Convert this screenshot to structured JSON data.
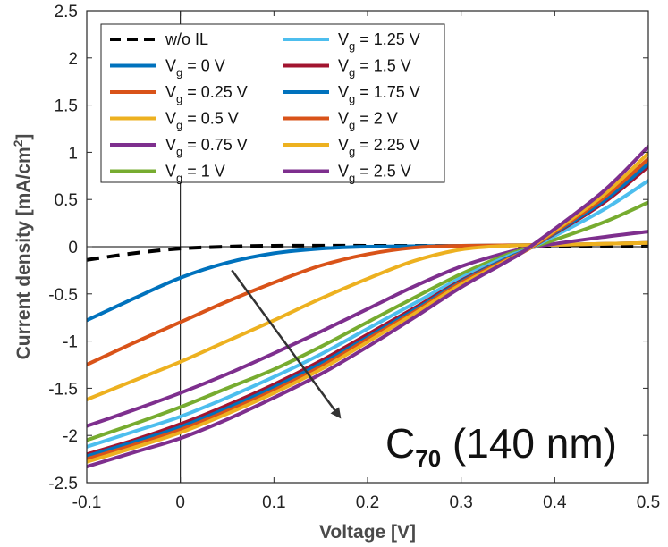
{
  "chart_data": {
    "type": "line",
    "xlabel": "Voltage [V]",
    "ylabel": "Current density [mA/cm",
    "ylabel_sup": "2",
    "ylabel_end": "]",
    "xlim": [
      -0.1,
      0.5
    ],
    "ylim": [
      -2.5,
      2.5
    ],
    "xticks": [
      "-0.1",
      "0",
      "0.1",
      "0.2",
      "0.3",
      "0.4",
      "0.5"
    ],
    "yticks": [
      "-2.5",
      "-2",
      "-1.5",
      "-1",
      "-0.5",
      "0",
      "0.5",
      "1",
      "1.5",
      "2",
      "2.5"
    ],
    "annotation": {
      "main": "C",
      "sub": "70",
      "rest": " (140 nm)"
    },
    "arrow": {
      "from": [
        0.055,
        -0.25
      ],
      "to": [
        0.17,
        -1.8
      ]
    },
    "series": [
      {
        "name": "w/o IL",
        "color": "#000000",
        "dash": true,
        "points": [
          [
            -0.1,
            -0.14
          ],
          [
            -0.05,
            -0.07
          ],
          [
            0,
            -0.02
          ],
          [
            0.05,
            0.0
          ],
          [
            0.1,
            0.01
          ],
          [
            0.2,
            0.01
          ],
          [
            0.3,
            0.01
          ],
          [
            0.4,
            0.01
          ],
          [
            0.5,
            0.01
          ]
        ]
      },
      {
        "name": "Vg = 0 V",
        "label": {
          "v": "V",
          "g": "g",
          "rest": " = 0 V"
        },
        "color": "#0072BD",
        "points": [
          [
            -0.1,
            -0.78
          ],
          [
            -0.05,
            -0.55
          ],
          [
            0,
            -0.33
          ],
          [
            0.05,
            -0.17
          ],
          [
            0.1,
            -0.07
          ],
          [
            0.15,
            -0.02
          ],
          [
            0.2,
            0.0
          ],
          [
            0.3,
            0.01
          ],
          [
            0.4,
            0.02
          ],
          [
            0.5,
            0.04
          ]
        ]
      },
      {
        "name": "Vg = 0.25 V",
        "label": {
          "v": "V",
          "g": "g",
          "rest": " = 0.25 V"
        },
        "color": "#D95319",
        "points": [
          [
            -0.1,
            -1.25
          ],
          [
            -0.05,
            -1.02
          ],
          [
            0,
            -0.8
          ],
          [
            0.05,
            -0.58
          ],
          [
            0.1,
            -0.38
          ],
          [
            0.15,
            -0.2
          ],
          [
            0.2,
            -0.08
          ],
          [
            0.25,
            -0.01
          ],
          [
            0.3,
            0.01
          ],
          [
            0.4,
            0.02
          ],
          [
            0.5,
            0.04
          ]
        ]
      },
      {
        "name": "Vg = 0.5 V",
        "label": {
          "v": "V",
          "g": "g",
          "rest": " = 0.5 V"
        },
        "color": "#EDB120",
        "points": [
          [
            -0.1,
            -1.62
          ],
          [
            -0.05,
            -1.42
          ],
          [
            0,
            -1.22
          ],
          [
            0.05,
            -1.0
          ],
          [
            0.1,
            -0.78
          ],
          [
            0.15,
            -0.55
          ],
          [
            0.2,
            -0.34
          ],
          [
            0.25,
            -0.15
          ],
          [
            0.3,
            -0.03
          ],
          [
            0.35,
            0.01
          ],
          [
            0.4,
            0.02
          ],
          [
            0.5,
            0.04
          ]
        ]
      },
      {
        "name": "Vg = 0.75 V",
        "label": {
          "v": "V",
          "g": "g",
          "rest": " = 0.75 V"
        },
        "color": "#7E2F8E",
        "points": [
          [
            -0.1,
            -1.9
          ],
          [
            -0.05,
            -1.73
          ],
          [
            0,
            -1.55
          ],
          [
            0.05,
            -1.35
          ],
          [
            0.1,
            -1.13
          ],
          [
            0.15,
            -0.9
          ],
          [
            0.2,
            -0.66
          ],
          [
            0.25,
            -0.42
          ],
          [
            0.3,
            -0.21
          ],
          [
            0.35,
            -0.06
          ],
          [
            0.38,
            0.0
          ],
          [
            0.45,
            0.1
          ],
          [
            0.5,
            0.16
          ]
        ]
      },
      {
        "name": "Vg = 1 V",
        "label": {
          "v": "V",
          "g": "g",
          "rest": " = 1 V"
        },
        "color": "#77AC30",
        "points": [
          [
            -0.1,
            -2.05
          ],
          [
            -0.05,
            -1.88
          ],
          [
            0,
            -1.7
          ],
          [
            0.05,
            -1.5
          ],
          [
            0.1,
            -1.3
          ],
          [
            0.15,
            -1.06
          ],
          [
            0.2,
            -0.8
          ],
          [
            0.25,
            -0.54
          ],
          [
            0.3,
            -0.29
          ],
          [
            0.35,
            -0.08
          ],
          [
            0.378,
            0.0
          ],
          [
            0.45,
            0.25
          ],
          [
            0.5,
            0.47
          ]
        ]
      },
      {
        "name": "Vg = 1.25 V",
        "label": {
          "v": "V",
          "g": "g",
          "rest": " = 1.25 V"
        },
        "color": "#4DBEEE",
        "points": [
          [
            -0.1,
            -2.12
          ],
          [
            -0.05,
            -1.96
          ],
          [
            0,
            -1.8
          ],
          [
            0.05,
            -1.6
          ],
          [
            0.1,
            -1.38
          ],
          [
            0.15,
            -1.14
          ],
          [
            0.2,
            -0.87
          ],
          [
            0.25,
            -0.6
          ],
          [
            0.3,
            -0.33
          ],
          [
            0.35,
            -0.1
          ],
          [
            0.377,
            0.0
          ],
          [
            0.45,
            0.38
          ],
          [
            0.5,
            0.7
          ]
        ]
      },
      {
        "name": "Vg = 1.5 V",
        "label": {
          "v": "V",
          "g": "g",
          "rest": " = 1.5 V"
        },
        "color": "#A2142F",
        "points": [
          [
            -0.1,
            -2.2
          ],
          [
            -0.05,
            -2.05
          ],
          [
            0,
            -1.88
          ],
          [
            0.05,
            -1.68
          ],
          [
            0.1,
            -1.46
          ],
          [
            0.15,
            -1.21
          ],
          [
            0.2,
            -0.93
          ],
          [
            0.25,
            -0.65
          ],
          [
            0.3,
            -0.36
          ],
          [
            0.35,
            -0.12
          ],
          [
            0.376,
            0.0
          ],
          [
            0.45,
            0.45
          ],
          [
            0.5,
            0.85
          ]
        ]
      },
      {
        "name": "Vg = 1.75 V",
        "label": {
          "v": "V",
          "g": "g",
          "rest": " = 1.75 V"
        },
        "color": "#0072BD",
        "points": [
          [
            -0.1,
            -2.22
          ],
          [
            -0.05,
            -2.07
          ],
          [
            0,
            -1.91
          ],
          [
            0.05,
            -1.71
          ],
          [
            0.1,
            -1.49
          ],
          [
            0.15,
            -1.24
          ],
          [
            0.2,
            -0.96
          ],
          [
            0.25,
            -0.67
          ],
          [
            0.3,
            -0.37
          ],
          [
            0.35,
            -0.12
          ],
          [
            0.376,
            0.0
          ],
          [
            0.45,
            0.47
          ],
          [
            0.5,
            0.88
          ]
        ]
      },
      {
        "name": "Vg = 2 V",
        "label": {
          "v": "V",
          "g": "g",
          "rest": " = 2 V"
        },
        "color": "#D95319",
        "points": [
          [
            -0.1,
            -2.25
          ],
          [
            -0.05,
            -2.1
          ],
          [
            0,
            -1.94
          ],
          [
            0.05,
            -1.74
          ],
          [
            0.1,
            -1.52
          ],
          [
            0.15,
            -1.27
          ],
          [
            0.2,
            -0.98
          ],
          [
            0.25,
            -0.69
          ],
          [
            0.3,
            -0.38
          ],
          [
            0.35,
            -0.13
          ],
          [
            0.376,
            0.0
          ],
          [
            0.45,
            0.5
          ],
          [
            0.5,
            0.93
          ]
        ]
      },
      {
        "name": "Vg = 2.25 V",
        "label": {
          "v": "V",
          "g": "g",
          "rest": " = 2.25 V"
        },
        "color": "#EDB120",
        "points": [
          [
            -0.1,
            -2.28
          ],
          [
            -0.05,
            -2.13
          ],
          [
            0,
            -1.97
          ],
          [
            0.05,
            -1.77
          ],
          [
            0.1,
            -1.55
          ],
          [
            0.15,
            -1.3
          ],
          [
            0.2,
            -1.01
          ],
          [
            0.25,
            -0.71
          ],
          [
            0.3,
            -0.4
          ],
          [
            0.35,
            -0.14
          ],
          [
            0.375,
            0.0
          ],
          [
            0.45,
            0.53
          ],
          [
            0.5,
            0.99
          ]
        ]
      },
      {
        "name": "Vg = 2.5 V",
        "label": {
          "v": "V",
          "g": "g",
          "rest": " = 2.5 V"
        },
        "color": "#7E2F8E",
        "points": [
          [
            -0.1,
            -2.33
          ],
          [
            -0.05,
            -2.18
          ],
          [
            0,
            -2.03
          ],
          [
            0.05,
            -1.83
          ],
          [
            0.1,
            -1.6
          ],
          [
            0.15,
            -1.35
          ],
          [
            0.2,
            -1.06
          ],
          [
            0.25,
            -0.75
          ],
          [
            0.3,
            -0.43
          ],
          [
            0.35,
            -0.15
          ],
          [
            0.374,
            0.0
          ],
          [
            0.45,
            0.57
          ],
          [
            0.5,
            1.06
          ]
        ]
      }
    ]
  }
}
